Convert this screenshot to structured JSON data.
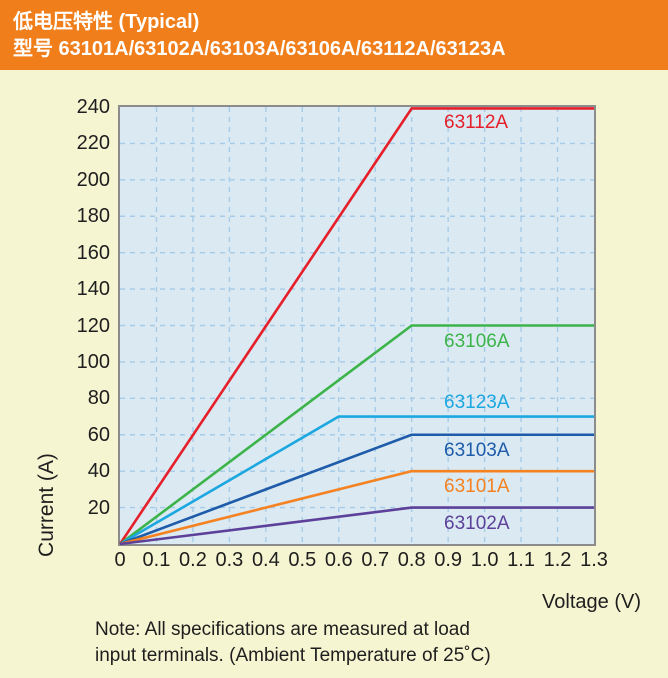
{
  "header": {
    "title_line1": "低电压特性 (Typical)",
    "title_line2": "型号 63101A/63102A/63103A/63106A/63112A/63123A"
  },
  "colors": {
    "page_bg": "#F6F5D2",
    "header_bg": "#F07E1B",
    "header_text": "#FFFFFF",
    "plot_bg": "#DAE9F2",
    "grid": "#A6CBE8",
    "plot_border": "#8C8C8C",
    "axis_text": "#1E1E1E"
  },
  "chart_data": {
    "type": "line",
    "xlabel": "Voltage (V)",
    "ylabel": "Current (A)",
    "xlim": [
      0,
      1.3
    ],
    "ylim": [
      0,
      240
    ],
    "grid": "dashed",
    "x_ticks": [
      0,
      0.1,
      0.2,
      0.3,
      0.4,
      0.5,
      0.6,
      0.7,
      0.8,
      0.9,
      1.0,
      1.1,
      1.2,
      1.3
    ],
    "x_tick_labels": [
      "0",
      "0.1",
      "0.2",
      "0.3",
      "0.4",
      "0.5",
      "0.6",
      "0.7",
      "0.8",
      "0.9",
      "1.0",
      "1.1",
      "1.2",
      "1.3"
    ],
    "y_ticks": [
      20,
      40,
      60,
      80,
      100,
      120,
      140,
      160,
      180,
      200,
      220,
      240
    ],
    "legend_position": "inline-right-of-each-line",
    "series": [
      {
        "name": "63112A",
        "color": "#E5202B",
        "points": [
          [
            0,
            0
          ],
          [
            0.8,
            240
          ],
          [
            1.3,
            240
          ]
        ],
        "label_side": "below"
      },
      {
        "name": "63106A",
        "color": "#3CB44A",
        "points": [
          [
            0,
            0
          ],
          [
            0.8,
            120
          ],
          [
            1.3,
            120
          ]
        ],
        "label_side": "below"
      },
      {
        "name": "63123A",
        "color": "#1CA7E0",
        "points": [
          [
            0,
            0
          ],
          [
            0.6,
            70
          ],
          [
            1.3,
            70
          ]
        ],
        "label_side": "above"
      },
      {
        "name": "63103A",
        "color": "#1E5BA9",
        "points": [
          [
            0,
            0
          ],
          [
            0.8,
            60
          ],
          [
            1.3,
            60
          ]
        ],
        "label_side": "below"
      },
      {
        "name": "63101A",
        "color": "#F58220",
        "points": [
          [
            0,
            0
          ],
          [
            0.8,
            40
          ],
          [
            1.3,
            40
          ]
        ],
        "label_side": "below"
      },
      {
        "name": "63102A",
        "color": "#5D4099",
        "points": [
          [
            0,
            0
          ],
          [
            0.8,
            20
          ],
          [
            1.3,
            20
          ]
        ],
        "label_side": "below"
      }
    ]
  },
  "footer": {
    "note_line1": "Note: All specifications are measured at load",
    "note_line2": "input terminals. (Ambient Temperature of 25˚C)"
  }
}
